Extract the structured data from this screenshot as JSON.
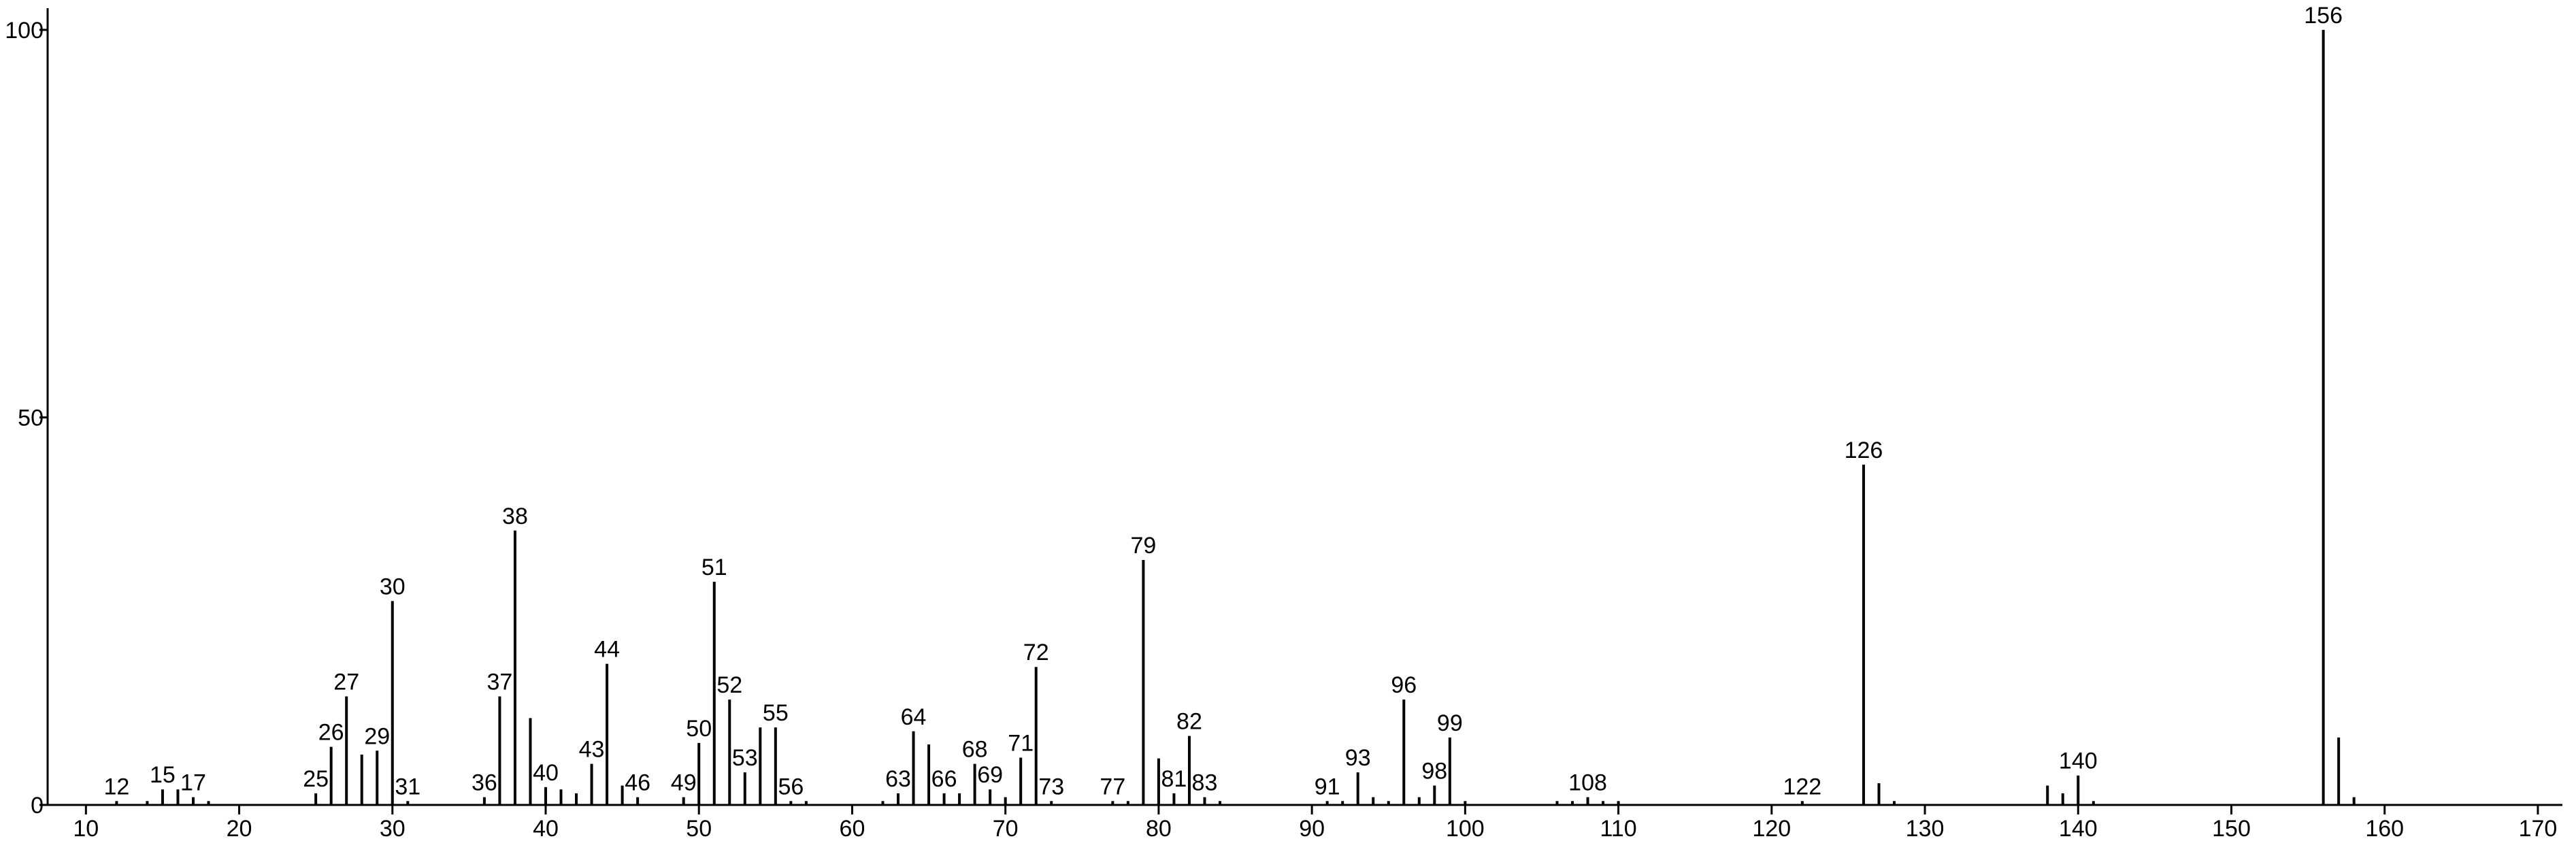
{
  "chart_data": {
    "type": "bar",
    "color": "#000000",
    "x": [
      12,
      14,
      15,
      16,
      17,
      18,
      25,
      26,
      27,
      28,
      29,
      30,
      31,
      36,
      37,
      38,
      39,
      40,
      41,
      42,
      43,
      44,
      45,
      46,
      49,
      50,
      51,
      52,
      53,
      54,
      55,
      56,
      57,
      62,
      63,
      64,
      65,
      66,
      67,
      68,
      69,
      70,
      71,
      72,
      73,
      77,
      78,
      79,
      80,
      81,
      82,
      83,
      84,
      91,
      92,
      93,
      94,
      95,
      96,
      97,
      98,
      99,
      100,
      106,
      107,
      108,
      109,
      110,
      122,
      126,
      127,
      128,
      138,
      139,
      140,
      141,
      156,
      157,
      158
    ],
    "values": [
      0.5,
      0.5,
      2,
      2,
      1,
      0.5,
      1.5,
      7.5,
      14,
      6.5,
      7,
      26.3,
      0.5,
      1,
      14,
      35.4,
      11.2,
      2.3,
      2,
      1.5,
      5.3,
      18.2,
      2.5,
      1,
      1,
      8,
      28.8,
      13.6,
      4.2,
      10,
      10,
      0.5,
      0.5,
      0.5,
      1.5,
      9.5,
      7.8,
      1.5,
      1.5,
      5.3,
      2,
      1,
      6.1,
      17.8,
      0.5,
      0.5,
      0.5,
      31.6,
      6,
      1.5,
      8.9,
      1,
      0.5,
      0.5,
      0.5,
      4.2,
      1,
      0.5,
      13.6,
      1,
      2.5,
      8.7,
      0.5,
      0.5,
      0.5,
      1,
      0.5,
      0.5,
      0.5,
      43.9,
      2.8,
      0.5,
      2.5,
      1.5,
      3.8,
      0.5,
      100,
      8.7,
      1
    ],
    "labels": [
      12,
      null,
      15,
      null,
      17,
      null,
      25,
      26,
      27,
      null,
      29,
      30,
      31,
      36,
      37,
      38,
      null,
      40,
      null,
      null,
      43,
      44,
      null,
      46,
      49,
      50,
      51,
      52,
      53,
      null,
      55,
      56,
      null,
      null,
      63,
      64,
      null,
      66,
      null,
      68,
      69,
      null,
      71,
      72,
      73,
      77,
      null,
      79,
      null,
      81,
      82,
      83,
      null,
      91,
      null,
      93,
      null,
      null,
      96,
      null,
      98,
      99,
      null,
      null,
      null,
      108,
      null,
      null,
      122,
      126,
      null,
      null,
      null,
      null,
      140,
      null,
      156,
      null,
      null
    ],
    "xlim": [
      7.5,
      171.6
    ],
    "ylim": [
      0,
      102.8
    ],
    "xticks": [
      10,
      20,
      30,
      40,
      50,
      60,
      70,
      80,
      90,
      100,
      110,
      120,
      130,
      140,
      150,
      160,
      170
    ],
    "yticks": [
      0,
      50,
      100
    ]
  }
}
